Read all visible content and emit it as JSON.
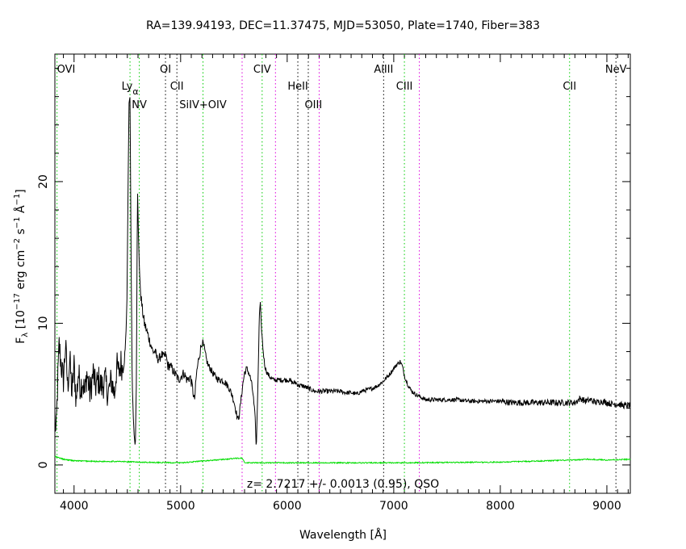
{
  "chart_data": {
    "type": "line",
    "title": "RA=139.94193, DEC=11.37475, MJD=53050, Plate=1740, Fiber=383",
    "xlabel": "Wavelength [Å]",
    "ylabel_prefix": "F",
    "ylabel_sub": "λ",
    "ylabel_body": " [10",
    "ylabel_exp1": "−17",
    "ylabel_mid1": " erg cm",
    "ylabel_exp2": "−2",
    "ylabel_mid2": " s",
    "ylabel_exp3": "−1",
    "ylabel_mid3": " Å",
    "ylabel_exp4": "−1",
    "ylabel_end": "]",
    "annotation": "z= 2.7217 +/- 0.0013 (0.95), QSO",
    "xlim": [
      3820,
      9220
    ],
    "ylim": [
      -2,
      29
    ],
    "x_ticks": [
      4000,
      5000,
      6000,
      7000,
      8000,
      9000
    ],
    "y_ticks": [
      0,
      10,
      20
    ],
    "grid": false,
    "colors": {
      "flux": "#000000",
      "error": "#00dd00",
      "line_green": "#00cc00",
      "line_magenta": "#dd00dd",
      "line_black": "#000000"
    },
    "lines": [
      {
        "label": "OVI",
        "sub": "",
        "x": 3840,
        "color": "green",
        "row": 0,
        "anchor": "start"
      },
      {
        "label": "Ly",
        "sub": "α",
        "x": 4525,
        "color": "green",
        "row": 1,
        "anchor": "middle"
      },
      {
        "label": "NV",
        "sub": "",
        "x": 4612,
        "color": "green",
        "row": 2,
        "anchor": "middle"
      },
      {
        "label": "OI",
        "sub": "",
        "x": 4858,
        "color": "black",
        "row": 0,
        "anchor": "middle"
      },
      {
        "label": "CII",
        "sub": "",
        "x": 4965,
        "color": "black",
        "row": 1,
        "anchor": "middle"
      },
      {
        "label": "SiIV+OIV",
        "sub": "",
        "x": 5210,
        "color": "green",
        "row": 2,
        "anchor": "middle"
      },
      {
        "label": "",
        "sub": "",
        "x": 5577,
        "color": "magenta",
        "row": -1,
        "anchor": "middle"
      },
      {
        "label": "CIV",
        "sub": "",
        "x": 5765,
        "color": "green",
        "row": 0,
        "anchor": "middle"
      },
      {
        "label": "",
        "sub": "",
        "x": 5890,
        "color": "magenta",
        "row": -1,
        "anchor": "middle"
      },
      {
        "label": "HeII",
        "sub": "",
        "x": 6100,
        "color": "black",
        "row": 1,
        "anchor": "middle"
      },
      {
        "label": "",
        "sub": "",
        "x": 6198,
        "color": "black",
        "row": -1,
        "anchor": "middle"
      },
      {
        "label": "",
        "sub": "",
        "x": 6300,
        "color": "magenta",
        "row": -1,
        "anchor": "middle"
      },
      {
        "label": "OIII",
        "sub": "",
        "x": 6246,
        "color": "none",
        "row": 2,
        "anchor": "middle"
      },
      {
        "label": "AlIII",
        "sub": "",
        "x": 6905,
        "color": "black",
        "row": 0,
        "anchor": "middle"
      },
      {
        "label": "CIII",
        "sub": "",
        "x": 7100,
        "color": "green",
        "row": 1,
        "anchor": "middle"
      },
      {
        "label": "",
        "sub": "",
        "x": 7240,
        "color": "magenta",
        "row": -1,
        "anchor": "middle"
      },
      {
        "label": "CII",
        "sub": "",
        "x": 8650,
        "color": "green",
        "row": 1,
        "anchor": "middle"
      },
      {
        "label": "NeV",
        "sub": "",
        "x": 9085,
        "color": "black",
        "row": 0,
        "anchor": "middle"
      }
    ],
    "flux_anchors": [
      [
        3820,
        3.5
      ],
      [
        3830,
        1.8
      ],
      [
        3845,
        5.5
      ],
      [
        3860,
        8.5
      ],
      [
        3880,
        7.0
      ],
      [
        3900,
        6.0
      ],
      [
        3920,
        8.5
      ],
      [
        3940,
        5.5
      ],
      [
        3960,
        7.5
      ],
      [
        3980,
        5.0
      ],
      [
        4000,
        7.0
      ],
      [
        4020,
        4.5
      ],
      [
        4040,
        6.5
      ],
      [
        4060,
        5.5
      ],
      [
        4080,
        6.0
      ],
      [
        4100,
        5.0
      ],
      [
        4120,
        6.5
      ],
      [
        4150,
        5.0
      ],
      [
        4180,
        6.5
      ],
      [
        4200,
        5.5
      ],
      [
        4230,
        6.0
      ],
      [
        4260,
        5.5
      ],
      [
        4290,
        6.0
      ],
      [
        4320,
        5.0
      ],
      [
        4350,
        6.0
      ],
      [
        4380,
        5.0
      ],
      [
        4400,
        7.0
      ],
      [
        4420,
        6.5
      ],
      [
        4440,
        7.2
      ],
      [
        4460,
        6.8
      ],
      [
        4480,
        8.0
      ],
      [
        4495,
        11.0
      ],
      [
        4505,
        18.0
      ],
      [
        4515,
        25.5
      ],
      [
        4525,
        26.0
      ],
      [
        4535,
        15.0
      ],
      [
        4545,
        6.0
      ],
      [
        4555,
        3.5
      ],
      [
        4565,
        2.0
      ],
      [
        4575,
        1.2
      ],
      [
        4585,
        6.0
      ],
      [
        4595,
        19.5
      ],
      [
        4605,
        16.0
      ],
      [
        4620,
        12.5
      ],
      [
        4640,
        11.0
      ],
      [
        4660,
        10.0
      ],
      [
        4680,
        9.5
      ],
      [
        4700,
        9.0
      ],
      [
        4720,
        8.5
      ],
      [
        4740,
        8.0
      ],
      [
        4760,
        8.0
      ],
      [
        4780,
        7.5
      ],
      [
        4800,
        7.5
      ],
      [
        4820,
        7.8
      ],
      [
        4840,
        7.6
      ],
      [
        4860,
        7.8
      ],
      [
        4880,
        7.0
      ],
      [
        4900,
        7.0
      ],
      [
        4920,
        6.8
      ],
      [
        4940,
        6.5
      ],
      [
        4960,
        6.3
      ],
      [
        4980,
        6.0
      ],
      [
        5000,
        6.2
      ],
      [
        5030,
        6.5
      ],
      [
        5060,
        6.0
      ],
      [
        5090,
        6.2
      ],
      [
        5110,
        5.5
      ],
      [
        5130,
        4.5
      ],
      [
        5150,
        6.5
      ],
      [
        5170,
        7.5
      ],
      [
        5190,
        8.3
      ],
      [
        5205,
        8.7
      ],
      [
        5220,
        8.3
      ],
      [
        5240,
        7.5
      ],
      [
        5260,
        7.0
      ],
      [
        5280,
        6.8
      ],
      [
        5300,
        6.5
      ],
      [
        5330,
        6.2
      ],
      [
        5360,
        6.0
      ],
      [
        5390,
        6.0
      ],
      [
        5420,
        5.8
      ],
      [
        5450,
        5.5
      ],
      [
        5480,
        5.0
      ],
      [
        5500,
        4.5
      ],
      [
        5520,
        3.8
      ],
      [
        5535,
        3.2
      ],
      [
        5550,
        3.5
      ],
      [
        5565,
        4.5
      ],
      [
        5580,
        5.5
      ],
      [
        5600,
        6.5
      ],
      [
        5620,
        6.8
      ],
      [
        5640,
        6.5
      ],
      [
        5660,
        6.0
      ],
      [
        5680,
        5.0
      ],
      [
        5700,
        3.2
      ],
      [
        5710,
        1.0
      ],
      [
        5718,
        3.5
      ],
      [
        5728,
        6.5
      ],
      [
        5738,
        10.5
      ],
      [
        5748,
        11.5
      ],
      [
        5760,
        9.5
      ],
      [
        5775,
        8.0
      ],
      [
        5790,
        7.0
      ],
      [
        5810,
        6.5
      ],
      [
        5840,
        6.2
      ],
      [
        5870,
        6.0
      ],
      [
        5900,
        6.0
      ],
      [
        5930,
        6.0
      ],
      [
        5960,
        6.0
      ],
      [
        5990,
        6.0
      ],
      [
        6020,
        6.0
      ],
      [
        6050,
        5.8
      ],
      [
        6080,
        5.8
      ],
      [
        6110,
        5.6
      ],
      [
        6140,
        5.6
      ],
      [
        6170,
        5.5
      ],
      [
        6200,
        5.4
      ],
      [
        6230,
        5.3
      ],
      [
        6260,
        5.2
      ],
      [
        6300,
        5.2
      ],
      [
        6350,
        5.2
      ],
      [
        6400,
        5.2
      ],
      [
        6450,
        5.2
      ],
      [
        6500,
        5.2
      ],
      [
        6550,
        5.1
      ],
      [
        6600,
        5.1
      ],
      [
        6650,
        5.0
      ],
      [
        6700,
        5.2
      ],
      [
        6750,
        5.3
      ],
      [
        6800,
        5.4
      ],
      [
        6850,
        5.6
      ],
      [
        6900,
        5.9
      ],
      [
        6950,
        6.3
      ],
      [
        7000,
        6.8
      ],
      [
        7030,
        7.1
      ],
      [
        7060,
        7.3
      ],
      [
        7080,
        7.0
      ],
      [
        7100,
        6.3
      ],
      [
        7130,
        5.7
      ],
      [
        7160,
        5.3
      ],
      [
        7200,
        5.0
      ],
      [
        7250,
        4.8
      ],
      [
        7300,
        4.6
      ],
      [
        7350,
        4.6
      ],
      [
        7400,
        4.6
      ],
      [
        7500,
        4.6
      ],
      [
        7600,
        4.6
      ],
      [
        7700,
        4.5
      ],
      [
        7800,
        4.5
      ],
      [
        7900,
        4.5
      ],
      [
        8000,
        4.5
      ],
      [
        8100,
        4.4
      ],
      [
        8200,
        4.4
      ],
      [
        8300,
        4.4
      ],
      [
        8400,
        4.4
      ],
      [
        8500,
        4.4
      ],
      [
        8600,
        4.4
      ],
      [
        8700,
        4.4
      ],
      [
        8750,
        4.7
      ],
      [
        8800,
        4.5
      ],
      [
        8850,
        4.6
      ],
      [
        8900,
        4.4
      ],
      [
        8950,
        4.5
      ],
      [
        9000,
        4.4
      ],
      [
        9050,
        4.3
      ],
      [
        9100,
        4.3
      ],
      [
        9150,
        4.2
      ],
      [
        9220,
        4.2
      ]
    ],
    "error_anchors": [
      [
        3820,
        0.6
      ],
      [
        3900,
        0.4
      ],
      [
        4000,
        0.3
      ],
      [
        4200,
        0.25
      ],
      [
        4400,
        0.25
      ],
      [
        4600,
        0.2
      ],
      [
        5000,
        0.15
      ],
      [
        5577,
        0.5
      ],
      [
        5600,
        0.15
      ],
      [
        6000,
        0.15
      ],
      [
        7000,
        0.15
      ],
      [
        8000,
        0.2
      ],
      [
        8700,
        0.35
      ],
      [
        8800,
        0.4
      ],
      [
        9000,
        0.35
      ],
      [
        9220,
        0.4
      ]
    ]
  }
}
